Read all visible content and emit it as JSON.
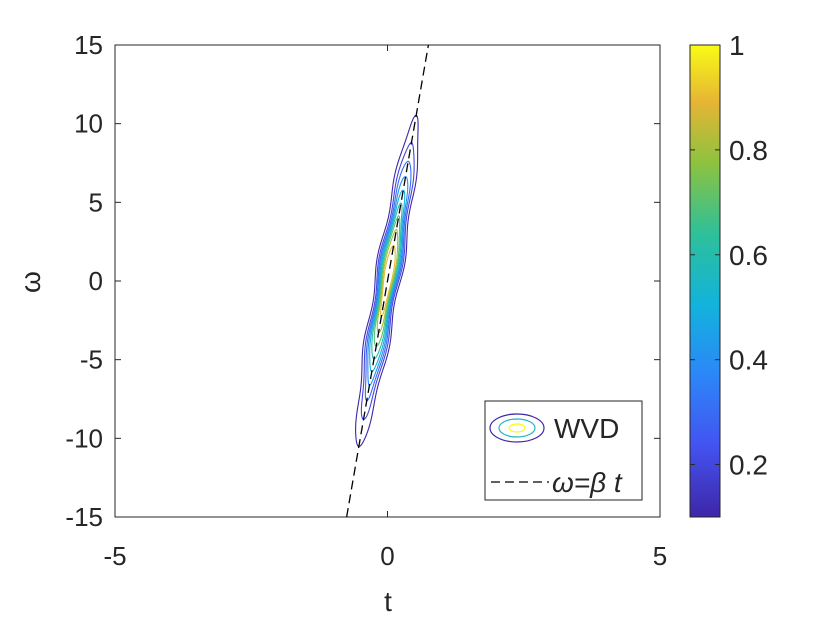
{
  "chart_data": {
    "type": "contour",
    "xlabel": "t",
    "ylabel": "ω",
    "xlim": [
      -5,
      5
    ],
    "ylim": [
      -15,
      15
    ],
    "xticks": [
      "-5",
      "0",
      "5"
    ],
    "yticks": [
      "-15",
      "-10",
      "-5",
      "0",
      "5",
      "10",
      "15"
    ],
    "grid": false,
    "beta": 20,
    "reference_line": {
      "label": "ω=β t",
      "style": "dashed",
      "color": "#000000",
      "slope": 20
    },
    "contour_levels": [
      0.1,
      0.2,
      0.3,
      0.4,
      0.5,
      0.6,
      0.7,
      0.8,
      0.9
    ],
    "colorbar": {
      "range": [
        0.1,
        1
      ],
      "ticks": [
        "0.2",
        "0.4",
        "0.6",
        "0.8",
        "1"
      ],
      "tick_values": [
        0.2,
        0.4,
        0.6,
        0.8,
        1
      ],
      "colormap": "parula"
    },
    "legend": {
      "location": "bottom-right",
      "entries": [
        {
          "label": "WVD",
          "kind": "contour"
        },
        {
          "label": "ω=β t",
          "kind": "dashed-line"
        }
      ]
    }
  }
}
